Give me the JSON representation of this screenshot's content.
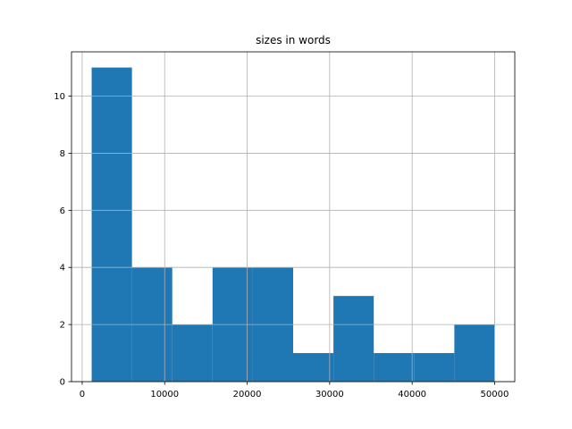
{
  "chart_data": {
    "type": "histogram",
    "title": "sizes in words",
    "bins": [
      1150,
      6035,
      10920,
      15805,
      20690,
      25575,
      30460,
      35345,
      40230,
      45115,
      50000
    ],
    "values": [
      11,
      4,
      2,
      4,
      4,
      1,
      3,
      1,
      1,
      2
    ],
    "color": "#1f77b4",
    "xlim": [
      -1292.5,
      52442.5
    ],
    "xticks": [
      0,
      10000,
      20000,
      30000,
      40000,
      50000
    ],
    "ylim": [
      0,
      11.55
    ],
    "yticks": [
      0,
      2,
      4,
      6,
      8,
      10
    ],
    "grid": true
  }
}
